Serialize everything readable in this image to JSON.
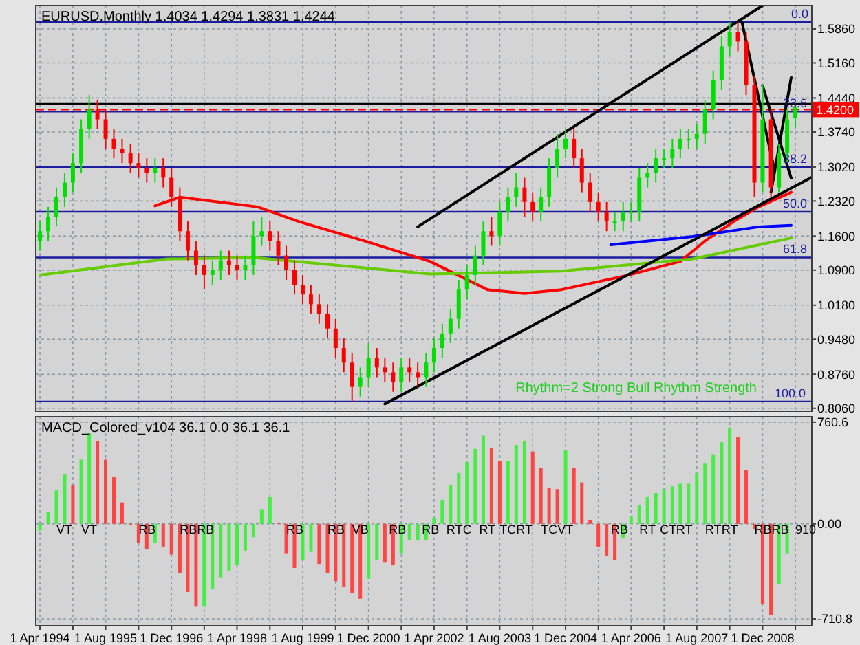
{
  "chart_data": [
    {
      "type": "candlestick",
      "title": "EURUSD,Monthly 1.4034 1.4294 1.3831 1.4244",
      "x": [
        "1994-04",
        "1994-06",
        "1994-08",
        "1994-10",
        "1994-12",
        "1995-02",
        "1995-04",
        "1995-06",
        "1995-08",
        "1995-10",
        "1995-12",
        "1996-02",
        "1996-04",
        "1996-06",
        "1996-08",
        "1996-10",
        "1996-12",
        "1997-02",
        "1997-04",
        "1997-06",
        "1997-08",
        "1997-10",
        "1997-12",
        "1998-02",
        "1998-04",
        "1998-06",
        "1998-08",
        "1998-10",
        "1998-12",
        "1999-02",
        "1999-04",
        "1999-06",
        "1999-08",
        "1999-10",
        "1999-12",
        "2000-02",
        "2000-04",
        "2000-06",
        "2000-08",
        "2000-10",
        "2000-12",
        "2001-02",
        "2001-04",
        "2001-06",
        "2001-08",
        "2001-10",
        "2001-12",
        "2002-02",
        "2002-04",
        "2002-06",
        "2002-08",
        "2002-10",
        "2002-12",
        "2003-02",
        "2003-04",
        "2003-06",
        "2003-08",
        "2003-10",
        "2003-12",
        "2004-02",
        "2004-04",
        "2004-06",
        "2004-08",
        "2004-10",
        "2004-12",
        "2005-02",
        "2005-04",
        "2005-06",
        "2005-08",
        "2005-10",
        "2005-12",
        "2006-02",
        "2006-04",
        "2006-06",
        "2006-08",
        "2006-10",
        "2006-12",
        "2007-02",
        "2007-04",
        "2007-06",
        "2007-08",
        "2007-10",
        "2007-12",
        "2008-02",
        "2008-04",
        "2008-06",
        "2008-08",
        "2008-10",
        "2008-12",
        "2009-02",
        "2009-04",
        "2009-06",
        "2009-08"
      ],
      "ohlc": [
        [
          1.15,
          1.19,
          1.13,
          1.17
        ],
        [
          1.17,
          1.22,
          1.15,
          1.2
        ],
        [
          1.2,
          1.26,
          1.18,
          1.24
        ],
        [
          1.24,
          1.29,
          1.22,
          1.27
        ],
        [
          1.27,
          1.33,
          1.25,
          1.31
        ],
        [
          1.31,
          1.4,
          1.29,
          1.38
        ],
        [
          1.38,
          1.45,
          1.36,
          1.42
        ],
        [
          1.42,
          1.44,
          1.38,
          1.4
        ],
        [
          1.4,
          1.42,
          1.34,
          1.36
        ],
        [
          1.36,
          1.38,
          1.32,
          1.34
        ],
        [
          1.34,
          1.36,
          1.31,
          1.33
        ],
        [
          1.33,
          1.35,
          1.29,
          1.31
        ],
        [
          1.31,
          1.33,
          1.28,
          1.3
        ],
        [
          1.3,
          1.32,
          1.27,
          1.29
        ],
        [
          1.29,
          1.32,
          1.27,
          1.3
        ],
        [
          1.3,
          1.32,
          1.26,
          1.28
        ],
        [
          1.28,
          1.3,
          1.22,
          1.24
        ],
        [
          1.24,
          1.26,
          1.15,
          1.17
        ],
        [
          1.17,
          1.19,
          1.11,
          1.13
        ],
        [
          1.13,
          1.15,
          1.08,
          1.1
        ],
        [
          1.1,
          1.12,
          1.05,
          1.08
        ],
        [
          1.08,
          1.11,
          1.06,
          1.09
        ],
        [
          1.09,
          1.13,
          1.07,
          1.11
        ],
        [
          1.11,
          1.13,
          1.08,
          1.1
        ],
        [
          1.1,
          1.12,
          1.07,
          1.09
        ],
        [
          1.09,
          1.12,
          1.07,
          1.1
        ],
        [
          1.1,
          1.19,
          1.08,
          1.16
        ],
        [
          1.16,
          1.2,
          1.14,
          1.17
        ],
        [
          1.17,
          1.19,
          1.13,
          1.15
        ],
        [
          1.15,
          1.17,
          1.1,
          1.12
        ],
        [
          1.12,
          1.14,
          1.07,
          1.09
        ],
        [
          1.09,
          1.11,
          1.04,
          1.06
        ],
        [
          1.06,
          1.08,
          1.02,
          1.04
        ],
        [
          1.04,
          1.06,
          1.0,
          1.02
        ],
        [
          1.02,
          1.04,
          0.98,
          1.0
        ],
        [
          1.0,
          1.02,
          0.95,
          0.97
        ],
        [
          0.97,
          0.99,
          0.91,
          0.93
        ],
        [
          0.93,
          0.95,
          0.88,
          0.9
        ],
        [
          0.9,
          0.92,
          0.82,
          0.85
        ],
        [
          0.85,
          0.89,
          0.83,
          0.87
        ],
        [
          0.87,
          0.94,
          0.85,
          0.91
        ],
        [
          0.91,
          0.93,
          0.87,
          0.89
        ],
        [
          0.89,
          0.91,
          0.86,
          0.88
        ],
        [
          0.88,
          0.9,
          0.84,
          0.86
        ],
        [
          0.86,
          0.91,
          0.84,
          0.89
        ],
        [
          0.89,
          0.91,
          0.86,
          0.88
        ],
        [
          0.88,
          0.9,
          0.85,
          0.87
        ],
        [
          0.87,
          0.92,
          0.85,
          0.9
        ],
        [
          0.9,
          0.95,
          0.88,
          0.93
        ],
        [
          0.93,
          0.98,
          0.91,
          0.96
        ],
        [
          0.96,
          1.01,
          0.94,
          0.99
        ],
        [
          0.99,
          1.07,
          0.97,
          1.05
        ],
        [
          1.05,
          1.1,
          1.03,
          1.08
        ],
        [
          1.08,
          1.14,
          1.06,
          1.12
        ],
        [
          1.12,
          1.19,
          1.1,
          1.17
        ],
        [
          1.17,
          1.2,
          1.14,
          1.16
        ],
        [
          1.16,
          1.23,
          1.14,
          1.21
        ],
        [
          1.21,
          1.26,
          1.19,
          1.24
        ],
        [
          1.24,
          1.29,
          1.22,
          1.26
        ],
        [
          1.26,
          1.28,
          1.2,
          1.23
        ],
        [
          1.23,
          1.25,
          1.19,
          1.21
        ],
        [
          1.21,
          1.26,
          1.19,
          1.24
        ],
        [
          1.24,
          1.32,
          1.22,
          1.3
        ],
        [
          1.3,
          1.37,
          1.28,
          1.34
        ],
        [
          1.34,
          1.38,
          1.32,
          1.36
        ],
        [
          1.36,
          1.38,
          1.3,
          1.32
        ],
        [
          1.32,
          1.34,
          1.25,
          1.27
        ],
        [
          1.27,
          1.29,
          1.21,
          1.23
        ],
        [
          1.23,
          1.25,
          1.19,
          1.21
        ],
        [
          1.21,
          1.23,
          1.17,
          1.19
        ],
        [
          1.19,
          1.21,
          1.17,
          1.19
        ],
        [
          1.19,
          1.23,
          1.17,
          1.21
        ],
        [
          1.21,
          1.23,
          1.19,
          1.21
        ],
        [
          1.21,
          1.3,
          1.19,
          1.28
        ],
        [
          1.28,
          1.31,
          1.26,
          1.29
        ],
        [
          1.29,
          1.34,
          1.27,
          1.32
        ],
        [
          1.32,
          1.34,
          1.3,
          1.32
        ],
        [
          1.32,
          1.36,
          1.3,
          1.34
        ],
        [
          1.34,
          1.38,
          1.32,
          1.36
        ],
        [
          1.36,
          1.38,
          1.34,
          1.36
        ],
        [
          1.36,
          1.39,
          1.34,
          1.37
        ],
        [
          1.37,
          1.44,
          1.35,
          1.42
        ],
        [
          1.42,
          1.5,
          1.4,
          1.48
        ],
        [
          1.48,
          1.57,
          1.46,
          1.55
        ],
        [
          1.55,
          1.6,
          1.53,
          1.58
        ],
        [
          1.58,
          1.6,
          1.54,
          1.56
        ],
        [
          1.56,
          1.58,
          1.45,
          1.47
        ],
        [
          1.47,
          1.49,
          1.24,
          1.27
        ],
        [
          1.27,
          1.47,
          1.25,
          1.4
        ],
        [
          1.4,
          1.42,
          1.24,
          1.26
        ],
        [
          1.26,
          1.35,
          1.25,
          1.33
        ],
        [
          1.33,
          1.42,
          1.31,
          1.4
        ],
        [
          1.4034,
          1.4294,
          1.3831,
          1.4244
        ]
      ],
      "series": [
        {
          "type": "line",
          "color": "#ff0000",
          "x": [
            "1996-08",
            "1997-02",
            "1998-09",
            "1999-07",
            "2000-11",
            "2002-03",
            "2003-05",
            "2004-02",
            "2004-11",
            "2006-03",
            "2007-04",
            "2007-10",
            "2008-05",
            "2008-11",
            "2009-07"
          ],
          "values": [
            1.222,
            1.24,
            1.22,
            1.19,
            1.15,
            1.108,
            1.05,
            1.042,
            1.05,
            1.079,
            1.108,
            1.15,
            1.19,
            1.22,
            1.25
          ]
        },
        {
          "type": "line",
          "color": "#66cc00",
          "x": [
            "1994-04",
            "1996-11",
            "1998-08",
            "2002-03",
            "2004-11",
            "2007-07",
            "2009-07"
          ],
          "values": [
            1.08,
            1.113,
            1.116,
            1.082,
            1.088,
            1.113,
            1.156
          ]
        },
        {
          "type": "line",
          "color": "#0000ff",
          "x": [
            "2005-11",
            "2007-07",
            "2008-11",
            "2009-07"
          ],
          "values": [
            1.142,
            1.159,
            1.179,
            1.182
          ]
        },
        {
          "type": "line",
          "color": "#000000",
          "x": [
            "2001-12",
            "2008-12"
          ],
          "values": [
            1.179,
            1.634
          ]
        },
        {
          "type": "line",
          "color": "#000000",
          "x": [
            "2001-04",
            "2009-12"
          ],
          "values": [
            0.815,
            1.281
          ]
        },
        {
          "type": "line",
          "color": "#000000",
          "x": [
            "2008-07",
            "2009-03"
          ],
          "values": [
            1.6,
            1.293
          ]
        },
        {
          "type": "line",
          "color": "#000000",
          "x": [
            "2008-12",
            "2009-07"
          ],
          "values": [
            1.469,
            1.279
          ]
        },
        {
          "type": "line",
          "color": "#000000",
          "x": [
            "2009-02",
            "2009-07"
          ],
          "values": [
            1.25,
            1.486
          ]
        }
      ],
      "ref_lines": [
        {
          "axis": "y",
          "value": 1.6,
          "color": "#1c1ca0"
        },
        {
          "axis": "y",
          "value": 1.416,
          "color": "#1c1ca0"
        },
        {
          "axis": "y",
          "value": 1.302,
          "color": "#1c1ca0"
        },
        {
          "axis": "y",
          "value": 1.21,
          "color": "#1c1ca0"
        },
        {
          "axis": "y",
          "value": 1.116,
          "color": "#1c1ca0"
        },
        {
          "axis": "y",
          "value": 0.82,
          "color": "#1c1ca0"
        },
        {
          "axis": "y",
          "value": 1.432,
          "color": "#000000"
        },
        {
          "axis": "y",
          "value": 1.42,
          "label": "1.4200",
          "color": "#ff0000",
          "line_style": "dashed"
        }
      ],
      "annotations": [
        "Rhythm=2 Strong Bull Rhythm Strength",
        {
          "text": "0.0",
          "x": "2009-07",
          "y": 1.6
        },
        {
          "text": "23.6",
          "x": "2009-05",
          "y": 1.416
        },
        {
          "text": "38.2",
          "x": "2009-05",
          "y": 1.302
        },
        {
          "text": "50.0",
          "x": "2009-05",
          "y": 1.21
        },
        {
          "text": "61.8",
          "x": "2009-05",
          "y": 1.116
        },
        {
          "text": "100.0",
          "x": "2009-03",
          "y": 0.82
        }
      ],
      "xlim": [
        "1994-03",
        "2009-12"
      ],
      "xticks": [
        {
          "value": "1994-04-01",
          "label": null
        },
        {
          "value": "1994-12-01",
          "label": null
        },
        {
          "value": "1995-08-01",
          "label": null
        },
        {
          "value": "1996-04-01",
          "label": null
        },
        {
          "value": "1996-12-01",
          "label": null
        },
        {
          "value": "1997-08-01",
          "label": null
        },
        {
          "value": "1998-04-01",
          "label": null
        },
        {
          "value": "1998-12-01",
          "label": null
        },
        {
          "value": "1999-08-01",
          "label": null
        },
        {
          "value": "2000-04-01",
          "label": null
        },
        {
          "value": "2000-12-01",
          "label": null
        },
        {
          "value": "2001-08-01",
          "label": null
        },
        {
          "value": "2002-04-01",
          "label": null
        },
        {
          "value": "2002-12-01",
          "label": null
        },
        {
          "value": "2003-08-01",
          "label": null
        },
        {
          "value": "2004-04-01",
          "label": null
        },
        {
          "value": "2004-12-01",
          "label": null
        },
        {
          "value": "2005-08-01",
          "label": null
        },
        {
          "value": "2006-04-01",
          "label": null
        },
        {
          "value": "2006-12-01",
          "label": null
        },
        {
          "value": "2007-08-01",
          "label": null
        },
        {
          "value": "2008-04-01",
          "label": null
        },
        {
          "value": "2008-12-01",
          "label": null
        },
        {
          "value": "2009-08-01",
          "label": null
        }
      ],
      "ylim": [
        0.8,
        1.634
      ],
      "yticks": [
        {
          "value": 1.586,
          "label": "1.5860"
        },
        {
          "value": 1.516,
          "label": "1.5160"
        },
        {
          "value": 1.444,
          "label": "1.4440"
        },
        {
          "value": 1.374,
          "label": "1.3740"
        },
        {
          "value": 1.302,
          "label": "1.3020"
        },
        {
          "value": 1.232,
          "label": "1.2320"
        },
        {
          "value": 1.16,
          "label": "1.1600"
        },
        {
          "value": 1.09,
          "label": "1.0900"
        },
        {
          "value": 1.018,
          "label": "1.0180"
        },
        {
          "value": 0.948,
          "label": "0.9480"
        },
        {
          "value": 0.876,
          "label": "0.8760"
        },
        {
          "value": 0.806,
          "label": "0.8060"
        }
      ],
      "grid": true,
      "tick_labels": "y"
    },
    {
      "type": "bar",
      "title": "MACD_Colored_v104 36.1 0.0 36.1 36.1",
      "x": [
        "1994-04",
        "1994-06",
        "1994-08",
        "1994-10",
        "1994-12",
        "1995-02",
        "1995-04",
        "1995-06",
        "1995-08",
        "1995-10",
        "1995-12",
        "1996-02",
        "1996-04",
        "1996-06",
        "1996-08",
        "1996-10",
        "1996-12",
        "1997-02",
        "1997-04",
        "1997-06",
        "1997-08",
        "1997-10",
        "1997-12",
        "1998-02",
        "1998-04",
        "1998-06",
        "1998-08",
        "1998-10",
        "1998-12",
        "1999-02",
        "1999-04",
        "1999-06",
        "1999-08",
        "1999-10",
        "1999-12",
        "2000-02",
        "2000-04",
        "2000-06",
        "2000-08",
        "2000-10",
        "2000-12",
        "2001-02",
        "2001-04",
        "2001-06",
        "2001-08",
        "2001-10",
        "2001-12",
        "2002-02",
        "2002-04",
        "2002-06",
        "2002-08",
        "2002-10",
        "2002-12",
        "2003-02",
        "2003-04",
        "2003-06",
        "2003-08",
        "2003-10",
        "2003-12",
        "2004-02",
        "2004-04",
        "2004-06",
        "2004-08",
        "2004-10",
        "2004-12",
        "2005-02",
        "2005-04",
        "2005-06",
        "2005-08",
        "2005-10",
        "2005-12",
        "2006-02",
        "2006-04",
        "2006-06",
        "2006-08",
        "2006-10",
        "2006-12",
        "2007-02",
        "2007-04",
        "2007-06",
        "2007-08",
        "2007-10",
        "2007-12",
        "2008-02",
        "2008-04",
        "2008-06",
        "2008-08",
        "2008-10",
        "2008-12",
        "2009-02",
        "2009-04",
        "2009-06",
        "2009-08"
      ],
      "values": [
        -50,
        90,
        250,
        370,
        290,
        480,
        680,
        620,
        480,
        350,
        160,
        -10,
        -140,
        -190,
        -140,
        -170,
        -230,
        -370,
        -510,
        -620,
        -620,
        -490,
        -400,
        -350,
        -310,
        -200,
        -100,
        110,
        200,
        10,
        -220,
        -330,
        -270,
        -210,
        -300,
        -370,
        -430,
        -470,
        -520,
        -560,
        -410,
        -270,
        -290,
        -310,
        -220,
        -120,
        -120,
        -120,
        40,
        180,
        290,
        380,
        460,
        560,
        660,
        570,
        470,
        470,
        590,
        620,
        540,
        420,
        270,
        260,
        550,
        420,
        310,
        30,
        -170,
        -240,
        -270,
        -110,
        60,
        140,
        200,
        230,
        260,
        280,
        300,
        300,
        380,
        450,
        520,
        610,
        720,
        650,
        400,
        -40,
        -600,
        -680,
        -450,
        -220,
        0
      ],
      "colors": [
        "#44ee44",
        "#44ee44",
        "#44ee44",
        "#44ee44",
        "#ff4444",
        "#44ee44",
        "#44ee44",
        "#ff4444",
        "#ff4444",
        "#ff4444",
        "#ff4444",
        "#ff4444",
        "#ff4444",
        "#ff4444",
        "#44ee44",
        "#ff4444",
        "#ff4444",
        "#ff4444",
        "#ff4444",
        "#ff4444",
        "#44ee44",
        "#44ee44",
        "#44ee44",
        "#44ee44",
        "#44ee44",
        "#44ee44",
        "#44ee44",
        "#44ee44",
        "#44ee44",
        "#ff4444",
        "#ff4444",
        "#ff4444",
        "#44ee44",
        "#44ee44",
        "#ff4444",
        "#ff4444",
        "#ff4444",
        "#ff4444",
        "#ff4444",
        "#ff4444",
        "#44ee44",
        "#44ee44",
        "#ff4444",
        "#ff4444",
        "#44ee44",
        "#44ee44",
        "#44ee44",
        "#44ee44",
        "#44ee44",
        "#44ee44",
        "#44ee44",
        "#44ee44",
        "#44ee44",
        "#44ee44",
        "#44ee44",
        "#ff4444",
        "#ff4444",
        "#44ee44",
        "#44ee44",
        "#44ee44",
        "#ff4444",
        "#ff4444",
        "#ff4444",
        "#ff4444",
        "#44ee44",
        "#ff4444",
        "#ff4444",
        "#ff4444",
        "#ff4444",
        "#ff4444",
        "#ff4444",
        "#44ee44",
        "#44ee44",
        "#44ee44",
        "#44ee44",
        "#44ee44",
        "#44ee44",
        "#44ee44",
        "#44ee44",
        "#44ee44",
        "#44ee44",
        "#44ee44",
        "#44ee44",
        "#44ee44",
        "#44ee44",
        "#ff4444",
        "#ff4444",
        "#ff4444",
        "#ff4444",
        "#ff4444",
        "#44ee44",
        "#44ee44",
        "#44ee44"
      ],
      "annotations": [
        {
          "text": "VT",
          "x": "1994-08",
          "y": 0
        },
        {
          "text": "VT",
          "x": "1995-02",
          "y": 0
        },
        {
          "text": "RB",
          "x": "1996-04",
          "y": 0
        },
        {
          "text": "RBRB",
          "x": "1997-02",
          "y": 0
        },
        {
          "text": "RB",
          "x": "1999-04",
          "y": 0
        },
        {
          "text": "RB",
          "x": "2000-02",
          "y": 0
        },
        {
          "text": "VB",
          "x": "2000-08",
          "y": 0
        },
        {
          "text": "RB",
          "x": "2001-05",
          "y": 0
        },
        {
          "text": "RB",
          "x": "2002-01",
          "y": 0
        },
        {
          "text": "RT",
          "x": "2002-07",
          "y": 0
        },
        {
          "text": "C",
          "x": "2002-11",
          "y": 0
        },
        {
          "text": "RT",
          "x": "2003-03",
          "y": 0
        },
        {
          "text": "TC",
          "x": "2003-08",
          "y": 0
        },
        {
          "text": "RT",
          "x": "2003-12",
          "y": 0
        },
        {
          "text": "TCVT",
          "x": "2004-06",
          "y": 0
        },
        {
          "text": "RB",
          "x": "2005-11",
          "y": 0
        },
        {
          "text": "RT",
          "x": "2006-06",
          "y": 0
        },
        {
          "text": "CT",
          "x": "2006-11",
          "y": 0
        },
        {
          "text": "RT",
          "x": "2007-03",
          "y": 0
        },
        {
          "text": "RT",
          "x": "2007-10",
          "y": 0
        },
        {
          "text": "RT",
          "x": "2008-02",
          "y": 0
        },
        {
          "text": "RBRB",
          "x": "2008-10",
          "y": 0
        },
        {
          "text": "910",
          "x": "2009-08",
          "y": 0
        }
      ],
      "xlim": [
        "1994-03",
        "2009-12"
      ],
      "xticks": [
        {
          "value": "1994-04-01",
          "label": "1 Apr 1994"
        },
        {
          "value": "1994-12-01",
          "label": null
        },
        {
          "value": "1995-08-01",
          "label": "1 Aug 1995"
        },
        {
          "value": "1996-04-01",
          "label": null
        },
        {
          "value": "1996-12-01",
          "label": "1 Dec 1996"
        },
        {
          "value": "1997-08-01",
          "label": null
        },
        {
          "value": "1998-04-01",
          "label": "1 Apr 1998"
        },
        {
          "value": "1998-12-01",
          "label": null
        },
        {
          "value": "1999-08-01",
          "label": "1 Aug 1999"
        },
        {
          "value": "2000-04-01",
          "label": null
        },
        {
          "value": "2000-12-01",
          "label": "1 Dec 2000"
        },
        {
          "value": "2001-08-01",
          "label": null
        },
        {
          "value": "2002-04-01",
          "label": "1 Apr 2002"
        },
        {
          "value": "2002-12-01",
          "label": null
        },
        {
          "value": "2003-08-01",
          "label": "1 Aug 2003"
        },
        {
          "value": "2004-04-01",
          "label": null
        },
        {
          "value": "2004-12-01",
          "label": "1 Dec 2004"
        },
        {
          "value": "2005-08-01",
          "label": null
        },
        {
          "value": "2006-04-01",
          "label": "1 Apr 2006"
        },
        {
          "value": "2006-12-01",
          "label": null
        },
        {
          "value": "2007-08-01",
          "label": "1 Aug 2007"
        },
        {
          "value": "2008-04-01",
          "label": null
        },
        {
          "value": "2008-12-01",
          "label": "1 Dec 2008"
        },
        {
          "value": "2009-08-01",
          "label": null
        }
      ],
      "ylim": [
        -762,
        801
      ],
      "yticks": [
        760.6,
        {
          "value": 0,
          "label": "0.00"
        },
        -710.8
      ],
      "grid": true
    }
  ]
}
